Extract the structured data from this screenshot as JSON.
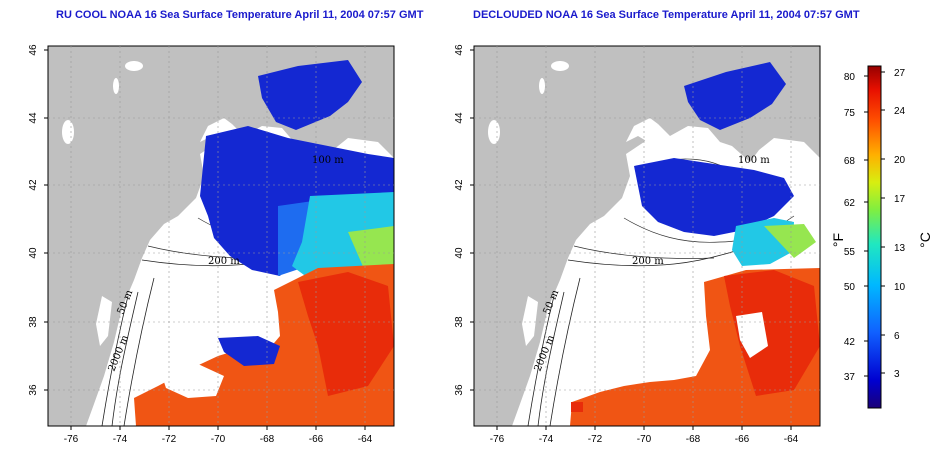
{
  "panels": [
    {
      "title": "RU COOL NOAA 16 Sea Surface Temperature April 11, 2004 07:57 GMT",
      "x_ticks": [
        "-76",
        "-74",
        "-72",
        "-70",
        "-68",
        "-66",
        "-64"
      ],
      "y_ticks": [
        "36",
        "38",
        "40",
        "42",
        "44",
        "46"
      ],
      "contour_labels": [
        "100 m",
        "200 m",
        "50 m",
        "2000 m"
      ]
    },
    {
      "title": "DECLOUDED NOAA 16 Sea Surface Temperature April 11, 2004 07:57 GMT",
      "x_ticks": [
        "-76",
        "-74",
        "-72",
        "-70",
        "-68",
        "-66",
        "-64"
      ],
      "y_ticks": [
        "36",
        "38",
        "40",
        "42",
        "44",
        "46"
      ],
      "contour_labels": [
        "100 m",
        "200 m",
        "50 m",
        "2000 m"
      ]
    }
  ],
  "colorbar": {
    "fahrenheit_ticks": [
      "80",
      "75",
      "68",
      "62",
      "55",
      "50",
      "42",
      "37"
    ],
    "celsius_ticks": [
      "27",
      "24",
      "20",
      "17",
      "13",
      "10",
      "6",
      "3"
    ],
    "fahrenheit_unit": "°F",
    "celsius_unit": "°C"
  },
  "colors": {
    "land": "#c0c0c0",
    "cold_sst": "#1428d2",
    "warm_sst": "#f05514",
    "title": "#1a1acc"
  }
}
